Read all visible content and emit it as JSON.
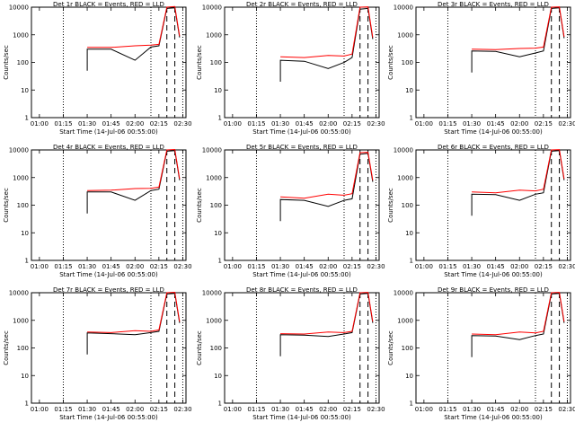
{
  "chart_data": [
    {
      "title": "Det 1r BLACK = Events, RED = LLD",
      "type": "line",
      "x": [
        "01:30",
        "01:45",
        "02:00",
        "02:10",
        "02:15",
        "02:20",
        "02:25",
        "02:28"
      ],
      "series": [
        {
          "name": "Events",
          "color": "#000000",
          "values": [
            300,
            300,
            120,
            360,
            400,
            9000,
            9500,
            800
          ]
        },
        {
          "name": "LLD",
          "color": "#ff0000",
          "values": [
            350,
            350,
            400,
            420,
            450,
            10000,
            10500,
            900
          ]
        }
      ],
      "vlines_dotted": [
        "01:15",
        "02:10",
        "02:30"
      ],
      "vlines_dashed": [
        "02:20",
        "02:25"
      ]
    },
    {
      "title": "Det 2r BLACK = Events, RED = LLD",
      "type": "line",
      "x": [
        "01:30",
        "01:45",
        "02:00",
        "02:10",
        "02:15",
        "02:20",
        "02:25",
        "02:28"
      ],
      "series": [
        {
          "name": "Events",
          "color": "#000000",
          "values": [
            120,
            110,
            60,
            100,
            150,
            8500,
            9000,
            700
          ]
        },
        {
          "name": "LLD",
          "color": "#ff0000",
          "values": [
            160,
            150,
            180,
            170,
            200,
            10000,
            10200,
            800
          ]
        }
      ],
      "vlines_dotted": [
        "01:15",
        "02:10",
        "02:30"
      ],
      "vlines_dashed": [
        "02:20",
        "02:25"
      ]
    },
    {
      "title": "Det 3r BLACK = Events, RED = LLD",
      "type": "line",
      "x": [
        "01:30",
        "01:45",
        "02:00",
        "02:10",
        "02:15",
        "02:20",
        "02:25",
        "02:28"
      ],
      "series": [
        {
          "name": "Events",
          "color": "#000000",
          "values": [
            260,
            250,
            160,
            220,
            260,
            9000,
            9500,
            750
          ]
        },
        {
          "name": "LLD",
          "color": "#ff0000",
          "values": [
            300,
            290,
            320,
            330,
            360,
            10000,
            10200,
            850
          ]
        }
      ],
      "vlines_dotted": [
        "01:15",
        "02:10",
        "02:30"
      ],
      "vlines_dashed": [
        "02:20",
        "02:25"
      ]
    },
    {
      "title": "Det 4r BLACK = Events, RED = LLD",
      "type": "line",
      "x": [
        "01:30",
        "01:45",
        "02:00",
        "02:10",
        "02:15",
        "02:20",
        "02:25",
        "02:28"
      ],
      "series": [
        {
          "name": "Events",
          "color": "#000000",
          "values": [
            300,
            300,
            150,
            340,
            380,
            9000,
            9500,
            800
          ]
        },
        {
          "name": "LLD",
          "color": "#ff0000",
          "values": [
            340,
            350,
            400,
            410,
            450,
            10000,
            10400,
            900
          ]
        }
      ],
      "vlines_dotted": [
        "01:15",
        "02:10",
        "02:30"
      ],
      "vlines_dashed": [
        "02:20",
        "02:25"
      ]
    },
    {
      "title": "Det 5r BLACK = Events, RED = LLD",
      "type": "line",
      "x": [
        "01:30",
        "01:45",
        "02:00",
        "02:10",
        "02:15",
        "02:20",
        "02:25",
        "02:28"
      ],
      "series": [
        {
          "name": "Events",
          "color": "#000000",
          "values": [
            160,
            150,
            90,
            150,
            170,
            7000,
            7500,
            700
          ]
        },
        {
          "name": "LLD",
          "color": "#ff0000",
          "values": [
            200,
            180,
            250,
            230,
            260,
            8000,
            8200,
            800
          ]
        }
      ],
      "vlines_dotted": [
        "01:15",
        "02:10",
        "02:30"
      ],
      "vlines_dashed": [
        "02:20",
        "02:25"
      ]
    },
    {
      "title": "Det 6r BLACK = Events, RED = LLD",
      "type": "line",
      "x": [
        "01:30",
        "01:45",
        "02:00",
        "02:10",
        "02:15",
        "02:20",
        "02:25",
        "02:28"
      ],
      "series": [
        {
          "name": "Events",
          "color": "#000000",
          "values": [
            250,
            240,
            150,
            250,
            280,
            9000,
            9500,
            800
          ]
        },
        {
          "name": "LLD",
          "color": "#ff0000",
          "values": [
            300,
            280,
            350,
            330,
            380,
            10000,
            10300,
            900
          ]
        }
      ],
      "vlines_dotted": [
        "01:15",
        "02:10",
        "02:30"
      ],
      "vlines_dashed": [
        "02:20",
        "02:25"
      ]
    },
    {
      "title": "Det 7r BLACK = Events, RED = LLD",
      "type": "line",
      "x": [
        "01:30",
        "01:45",
        "02:00",
        "02:10",
        "02:15",
        "02:20",
        "02:25",
        "02:28"
      ],
      "series": [
        {
          "name": "Events",
          "color": "#000000",
          "values": [
            350,
            330,
            300,
            360,
            400,
            9000,
            9500,
            800
          ]
        },
        {
          "name": "LLD",
          "color": "#ff0000",
          "values": [
            380,
            360,
            420,
            400,
            450,
            10000,
            10400,
            900
          ]
        }
      ],
      "vlines_dotted": [
        "01:15",
        "02:10",
        "02:30"
      ],
      "vlines_dashed": [
        "02:20",
        "02:25"
      ]
    },
    {
      "title": "Det 8r BLACK = Events, RED = LLD",
      "type": "line",
      "x": [
        "01:30",
        "01:45",
        "02:00",
        "02:10",
        "02:15",
        "02:20",
        "02:25",
        "02:28"
      ],
      "series": [
        {
          "name": "Events",
          "color": "#000000",
          "values": [
            300,
            290,
            260,
            320,
            360,
            9000,
            9500,
            800
          ]
        },
        {
          "name": "LLD",
          "color": "#ff0000",
          "values": [
            330,
            320,
            380,
            360,
            400,
            10000,
            10300,
            900
          ]
        }
      ],
      "vlines_dotted": [
        "01:15",
        "02:10",
        "02:30"
      ],
      "vlines_dashed": [
        "02:20",
        "02:25"
      ]
    },
    {
      "title": "Det 9r BLACK = Events, RED = LLD",
      "type": "line",
      "x": [
        "01:30",
        "01:45",
        "02:00",
        "02:10",
        "02:15",
        "02:20",
        "02:25",
        "02:28"
      ],
      "series": [
        {
          "name": "Events",
          "color": "#000000",
          "values": [
            280,
            270,
            200,
            280,
            320,
            9000,
            9500,
            800
          ]
        },
        {
          "name": "LLD",
          "color": "#ff0000",
          "values": [
            320,
            300,
            380,
            350,
            400,
            10000,
            10300,
            900
          ]
        }
      ],
      "vlines_dotted": [
        "01:15",
        "02:10",
        "02:30"
      ],
      "vlines_dashed": [
        "02:20",
        "02:25"
      ]
    }
  ],
  "axes": {
    "xlabel": "Start Time (14-Jul-06 00:55:00)",
    "ylabel": "Counts/sec",
    "xticks": [
      "01:00",
      "01:15",
      "01:30",
      "01:45",
      "02:00",
      "02:15",
      "02:30"
    ],
    "yticks": [
      "1",
      "10",
      "100",
      "1000",
      "10000"
    ],
    "xlim": [
      "00:55",
      "02:32"
    ],
    "ylim": [
      1,
      10000
    ],
    "yscale": "log"
  }
}
